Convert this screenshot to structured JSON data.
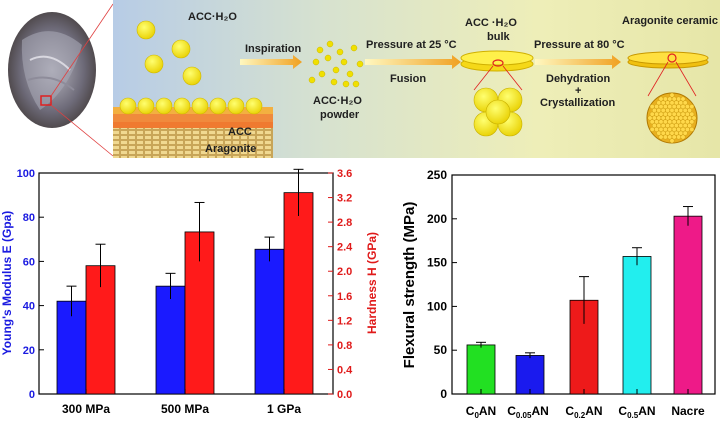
{
  "scheme": {
    "labels": {
      "acc_h2o": "ACC·H₂O",
      "acc": "ACC",
      "aragonite": "Aragonite",
      "inspiration": "Inspiration",
      "powder_line1": "ACC·H₂O",
      "powder_line2": "powder",
      "pressure25": "Pressure at 25 °C",
      "fusion": "Fusion",
      "bulk_line1": "ACC ·H₂O",
      "bulk_line2": "bulk",
      "pressure80": "Pressure at 80 °C",
      "dehydration": "Dehydration",
      "plus": "+",
      "crystallization": "Crystallization",
      "ceramic": "Aragonite ceramic"
    }
  },
  "chart_data": [
    {
      "type": "bar",
      "categories": [
        "300 MPa",
        "500 MPa",
        "1 GPa"
      ],
      "ylabel": "Young's Modulus E (Gpa)",
      "y2label": "Hardness H (GPa)",
      "ylim": [
        0,
        100
      ],
      "y2lim": [
        0,
        3.6
      ],
      "yticks": [
        "0",
        "20",
        "40",
        "60",
        "80",
        "100"
      ],
      "y2ticks": [
        "0.0",
        "0.4",
        "0.8",
        "1.2",
        "1.6",
        "2.0",
        "2.4",
        "2.8",
        "3.2",
        "3.6"
      ],
      "series": [
        {
          "axis": "left",
          "color": "#1a1aff",
          "values": [
            42,
            48.8,
            65.5
          ],
          "errors": [
            6.8,
            5.8,
            5.5
          ]
        },
        {
          "axis": "right",
          "color": "#ff1a1a",
          "values": [
            2.09,
            2.64,
            3.28
          ],
          "errors": [
            0.35,
            0.48,
            0.38
          ]
        }
      ]
    },
    {
      "type": "bar",
      "categories": [
        "C0AN",
        "C0.05AN",
        "C0.2AN",
        "C0.5AN",
        "Nacre"
      ],
      "ylabel": "Flexural strength (MPa)",
      "ylim": [
        0,
        250
      ],
      "yticks": [
        "0",
        "50",
        "100",
        "150",
        "200",
        "250"
      ],
      "values": [
        56,
        44,
        107,
        157,
        203
      ],
      "errors": [
        3,
        3,
        27,
        10,
        11
      ],
      "colors": [
        "#22e022",
        "#1a1aee",
        "#ee1a1a",
        "#22eeee",
        "#ee1a88"
      ]
    }
  ]
}
